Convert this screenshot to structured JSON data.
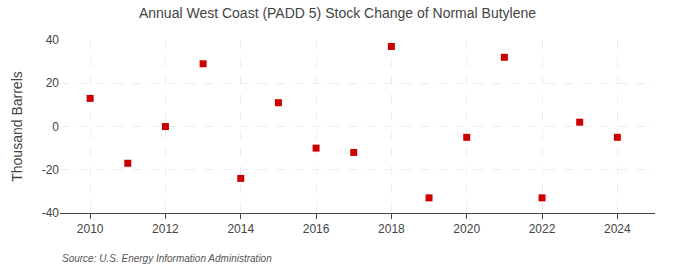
{
  "chart_data": {
    "type": "scatter",
    "title": "Annual West Coast (PADD 5) Stock Change of Normal Butylene",
    "ylabel": "Thousand Barrels",
    "annotations": [
      "Source: U.S. Energy Information Administration"
    ],
    "x": [
      2010,
      2011,
      2012,
      2013,
      2014,
      2015,
      2016,
      2017,
      2018,
      2019,
      2020,
      2021,
      2022,
      2023,
      2024
    ],
    "values": [
      13,
      -17,
      0,
      29,
      -24,
      11,
      -10,
      -12,
      37,
      -33,
      -5,
      32,
      -33,
      2,
      -5
    ],
    "color": "#cc0000",
    "marker": "square",
    "xlim": [
      2009.2,
      2025.0
    ],
    "xticks": [
      2010,
      2012,
      2014,
      2016,
      2018,
      2020,
      2022,
      2024
    ],
    "ylim": [
      -40,
      40
    ],
    "yticks": [
      -40,
      -20,
      0,
      20,
      40
    ],
    "grid": true
  }
}
